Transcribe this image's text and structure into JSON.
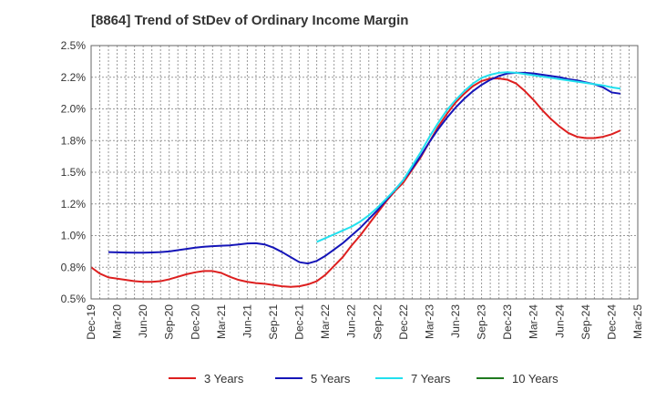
{
  "chart_data": {
    "type": "line",
    "title": "[8864]  Trend of StDev of Ordinary Income Margin",
    "xlabel": "",
    "ylabel": "",
    "ylim": [
      0.5,
      2.5
    ],
    "grid": true,
    "legend_position": "bottom",
    "x_tick_labels": [
      "Dec-19",
      "Mar-20",
      "Jun-20",
      "Sep-20",
      "Dec-20",
      "Mar-21",
      "Jun-21",
      "Sep-21",
      "Dec-21",
      "Mar-22",
      "Jun-22",
      "Sep-22",
      "Dec-22",
      "Mar-23",
      "Jun-23",
      "Sep-23",
      "Dec-23",
      "Mar-24",
      "Jun-24",
      "Sep-24",
      "Dec-24",
      "Mar-25"
    ],
    "y_ticks": [
      {
        "value": 0.5,
        "label": "0.5%"
      },
      {
        "value": 0.75,
        "label": "0.8%"
      },
      {
        "value": 1.0,
        "label": "1.0%"
      },
      {
        "value": 1.25,
        "label": "1.2%"
      },
      {
        "value": 1.5,
        "label": "1.5%"
      },
      {
        "value": 1.75,
        "label": "1.8%"
      },
      {
        "value": 2.0,
        "label": "2.0%"
      },
      {
        "value": 2.25,
        "label": "2.2%"
      },
      {
        "value": 2.5,
        "label": "2.5%"
      }
    ],
    "series": [
      {
        "name": "3 Years",
        "color": "#dd1f1f",
        "points": [
          [
            "Dec-19",
            0.75
          ],
          [
            "Jan-20",
            0.7
          ],
          [
            "Feb-20",
            0.67
          ],
          [
            "Mar-20",
            0.66
          ],
          [
            "Apr-20",
            0.65
          ],
          [
            "May-20",
            0.64
          ],
          [
            "Jun-20",
            0.635
          ],
          [
            "Jul-20",
            0.635
          ],
          [
            "Aug-20",
            0.64
          ],
          [
            "Sep-20",
            0.655
          ],
          [
            "Oct-20",
            0.675
          ],
          [
            "Nov-20",
            0.695
          ],
          [
            "Dec-20",
            0.71
          ],
          [
            "Jan-21",
            0.72
          ],
          [
            "Feb-21",
            0.72
          ],
          [
            "Mar-21",
            0.705
          ],
          [
            "Apr-21",
            0.675
          ],
          [
            "May-21",
            0.65
          ],
          [
            "Jun-21",
            0.635
          ],
          [
            "Jul-21",
            0.625
          ],
          [
            "Aug-21",
            0.62
          ],
          [
            "Sep-21",
            0.61
          ],
          [
            "Oct-21",
            0.6
          ],
          [
            "Nov-21",
            0.595
          ],
          [
            "Dec-21",
            0.6
          ],
          [
            "Jan-22",
            0.615
          ],
          [
            "Feb-22",
            0.64
          ],
          [
            "Mar-22",
            0.69
          ],
          [
            "Apr-22",
            0.76
          ],
          [
            "May-22",
            0.83
          ],
          [
            "Jun-22",
            0.92
          ],
          [
            "Jul-22",
            1.0
          ],
          [
            "Aug-22",
            1.09
          ],
          [
            "Sep-22",
            1.18
          ],
          [
            "Oct-22",
            1.27
          ],
          [
            "Nov-22",
            1.35
          ],
          [
            "Dec-22",
            1.42
          ],
          [
            "Jan-23",
            1.52
          ],
          [
            "Feb-23",
            1.62
          ],
          [
            "Mar-23",
            1.74
          ],
          [
            "Apr-23",
            1.86
          ],
          [
            "May-23",
            1.96
          ],
          [
            "Jun-23",
            2.05
          ],
          [
            "Jul-23",
            2.12
          ],
          [
            "Aug-23",
            2.18
          ],
          [
            "Sep-23",
            2.22
          ],
          [
            "Oct-23",
            2.24
          ],
          [
            "Nov-23",
            2.24
          ],
          [
            "Dec-23",
            2.23
          ],
          [
            "Jan-24",
            2.2
          ],
          [
            "Feb-24",
            2.14
          ],
          [
            "Mar-24",
            2.07
          ],
          [
            "Apr-24",
            1.99
          ],
          [
            "May-24",
            1.92
          ],
          [
            "Jun-24",
            1.86
          ],
          [
            "Jul-24",
            1.81
          ],
          [
            "Aug-24",
            1.78
          ],
          [
            "Sep-24",
            1.77
          ],
          [
            "Oct-24",
            1.77
          ],
          [
            "Nov-24",
            1.78
          ],
          [
            "Dec-24",
            1.8
          ],
          [
            "Jan-25",
            1.83
          ]
        ]
      },
      {
        "name": "5 Years",
        "color": "#1515b8",
        "points": [
          [
            "Feb-20",
            0.87
          ],
          [
            "Mar-20",
            0.868
          ],
          [
            "Apr-20",
            0.866
          ],
          [
            "May-20",
            0.865
          ],
          [
            "Jun-20",
            0.865
          ],
          [
            "Jul-20",
            0.867
          ],
          [
            "Aug-20",
            0.87
          ],
          [
            "Sep-20",
            0.875
          ],
          [
            "Oct-20",
            0.885
          ],
          [
            "Nov-20",
            0.895
          ],
          [
            "Dec-20",
            0.905
          ],
          [
            "Jan-21",
            0.912
          ],
          [
            "Feb-21",
            0.916
          ],
          [
            "Mar-21",
            0.92
          ],
          [
            "Apr-21",
            0.923
          ],
          [
            "May-21",
            0.93
          ],
          [
            "Jun-21",
            0.938
          ],
          [
            "Jul-21",
            0.94
          ],
          [
            "Aug-21",
            0.93
          ],
          [
            "Sep-21",
            0.905
          ],
          [
            "Oct-21",
            0.87
          ],
          [
            "Nov-21",
            0.83
          ],
          [
            "Dec-21",
            0.79
          ],
          [
            "Jan-22",
            0.78
          ],
          [
            "Feb-22",
            0.8
          ],
          [
            "Mar-22",
            0.84
          ],
          [
            "Apr-22",
            0.89
          ],
          [
            "May-22",
            0.94
          ],
          [
            "Jun-22",
            1.0
          ],
          [
            "Jul-22",
            1.06
          ],
          [
            "Aug-22",
            1.13
          ],
          [
            "Sep-22",
            1.2
          ],
          [
            "Oct-22",
            1.28
          ],
          [
            "Nov-22",
            1.36
          ],
          [
            "Dec-22",
            1.44
          ],
          [
            "Jan-23",
            1.53
          ],
          [
            "Feb-23",
            1.63
          ],
          [
            "Mar-23",
            1.74
          ],
          [
            "Apr-23",
            1.84
          ],
          [
            "May-23",
            1.93
          ],
          [
            "Jun-23",
            2.01
          ],
          [
            "Jul-23",
            2.08
          ],
          [
            "Aug-23",
            2.14
          ],
          [
            "Sep-23",
            2.19
          ],
          [
            "Oct-23",
            2.23
          ],
          [
            "Nov-23",
            2.26
          ],
          [
            "Dec-23",
            2.28
          ],
          [
            "Jan-24",
            2.285
          ],
          [
            "Feb-24",
            2.285
          ],
          [
            "Mar-24",
            2.28
          ],
          [
            "Apr-24",
            2.27
          ],
          [
            "May-24",
            2.26
          ],
          [
            "Jun-24",
            2.25
          ],
          [
            "Jul-24",
            2.235
          ],
          [
            "Aug-24",
            2.225
          ],
          [
            "Sep-24",
            2.21
          ],
          [
            "Oct-24",
            2.195
          ],
          [
            "Nov-24",
            2.17
          ],
          [
            "Dec-24",
            2.13
          ],
          [
            "Jan-25",
            2.12
          ]
        ]
      },
      {
        "name": "7 Years",
        "color": "#22e0ee",
        "points": [
          [
            "Feb-22",
            0.95
          ],
          [
            "Mar-22",
            0.98
          ],
          [
            "Apr-22",
            1.01
          ],
          [
            "May-22",
            1.04
          ],
          [
            "Jun-22",
            1.07
          ],
          [
            "Jul-22",
            1.11
          ],
          [
            "Aug-22",
            1.16
          ],
          [
            "Sep-22",
            1.22
          ],
          [
            "Oct-22",
            1.29
          ],
          [
            "Nov-22",
            1.36
          ],
          [
            "Dec-22",
            1.44
          ],
          [
            "Jan-23",
            1.55
          ],
          [
            "Feb-23",
            1.66
          ],
          [
            "Mar-23",
            1.78
          ],
          [
            "Apr-23",
            1.89
          ],
          [
            "May-23",
            1.99
          ],
          [
            "Jun-23",
            2.07
          ],
          [
            "Jul-23",
            2.14
          ],
          [
            "Aug-23",
            2.2
          ],
          [
            "Sep-23",
            2.245
          ],
          [
            "Oct-23",
            2.27
          ],
          [
            "Nov-23",
            2.285
          ],
          [
            "Dec-23",
            2.29
          ],
          [
            "Jan-24",
            2.285
          ],
          [
            "Feb-24",
            2.275
          ],
          [
            "Mar-24",
            2.265
          ],
          [
            "Apr-24",
            2.255
          ],
          [
            "May-24",
            2.245
          ],
          [
            "Jun-24",
            2.235
          ],
          [
            "Jul-24",
            2.225
          ],
          [
            "Aug-24",
            2.215
          ],
          [
            "Sep-24",
            2.205
          ],
          [
            "Oct-24",
            2.195
          ],
          [
            "Nov-24",
            2.185
          ],
          [
            "Dec-24",
            2.17
          ],
          [
            "Jan-25",
            2.16
          ]
        ]
      },
      {
        "name": "10 Years",
        "color": "#1f7a1f",
        "points": []
      }
    ]
  }
}
